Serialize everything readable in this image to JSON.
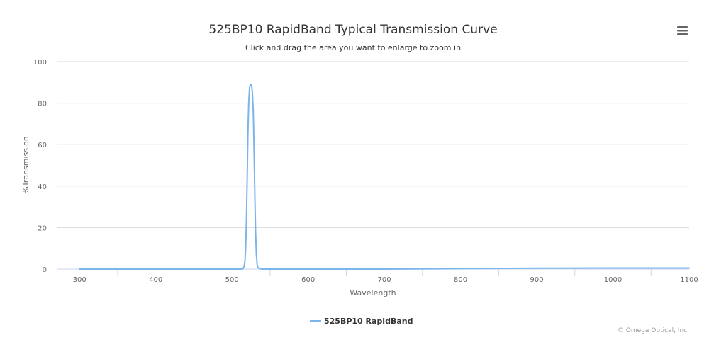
{
  "chart_data": {
    "type": "line",
    "title": "525BP10 RapidBand Typical Transmission Curve",
    "subtitle": "Click and drag the area you want to enlarge to zoom in",
    "xlabel": "Wavelength",
    "ylabel": "%Transmission",
    "xlim": [
      270,
      1100
    ],
    "ylim": [
      0,
      100
    ],
    "x_ticks": [
      300,
      400,
      500,
      600,
      700,
      800,
      900,
      1000,
      1100
    ],
    "y_ticks": [
      0,
      20,
      40,
      60,
      80,
      100
    ],
    "grid": true,
    "legend": "bottom-center",
    "series": [
      {
        "name": "525BP10 RapidBand",
        "color": "#7cb5ec",
        "x": [
          300,
          400,
          500,
          512,
          514,
          515,
          516,
          517,
          518,
          519,
          520,
          521,
          522,
          523,
          524,
          525,
          526,
          527,
          528,
          529,
          530,
          531,
          532,
          533,
          534,
          536,
          540,
          600,
          700,
          800,
          900,
          1000,
          1100
        ],
        "y": [
          0,
          0,
          0,
          0,
          0.1,
          0.5,
          1.5,
          4,
          10,
          24,
          45,
          66,
          80,
          87,
          89,
          89,
          88,
          84,
          75,
          58,
          36,
          18,
          7,
          2.5,
          0.8,
          0.2,
          0,
          0,
          0,
          0.2,
          0.4,
          0.5,
          0.5
        ]
      }
    ]
  },
  "credits": "© Omega Optical, Inc.",
  "menu_icon": "hamburger-menu-icon"
}
